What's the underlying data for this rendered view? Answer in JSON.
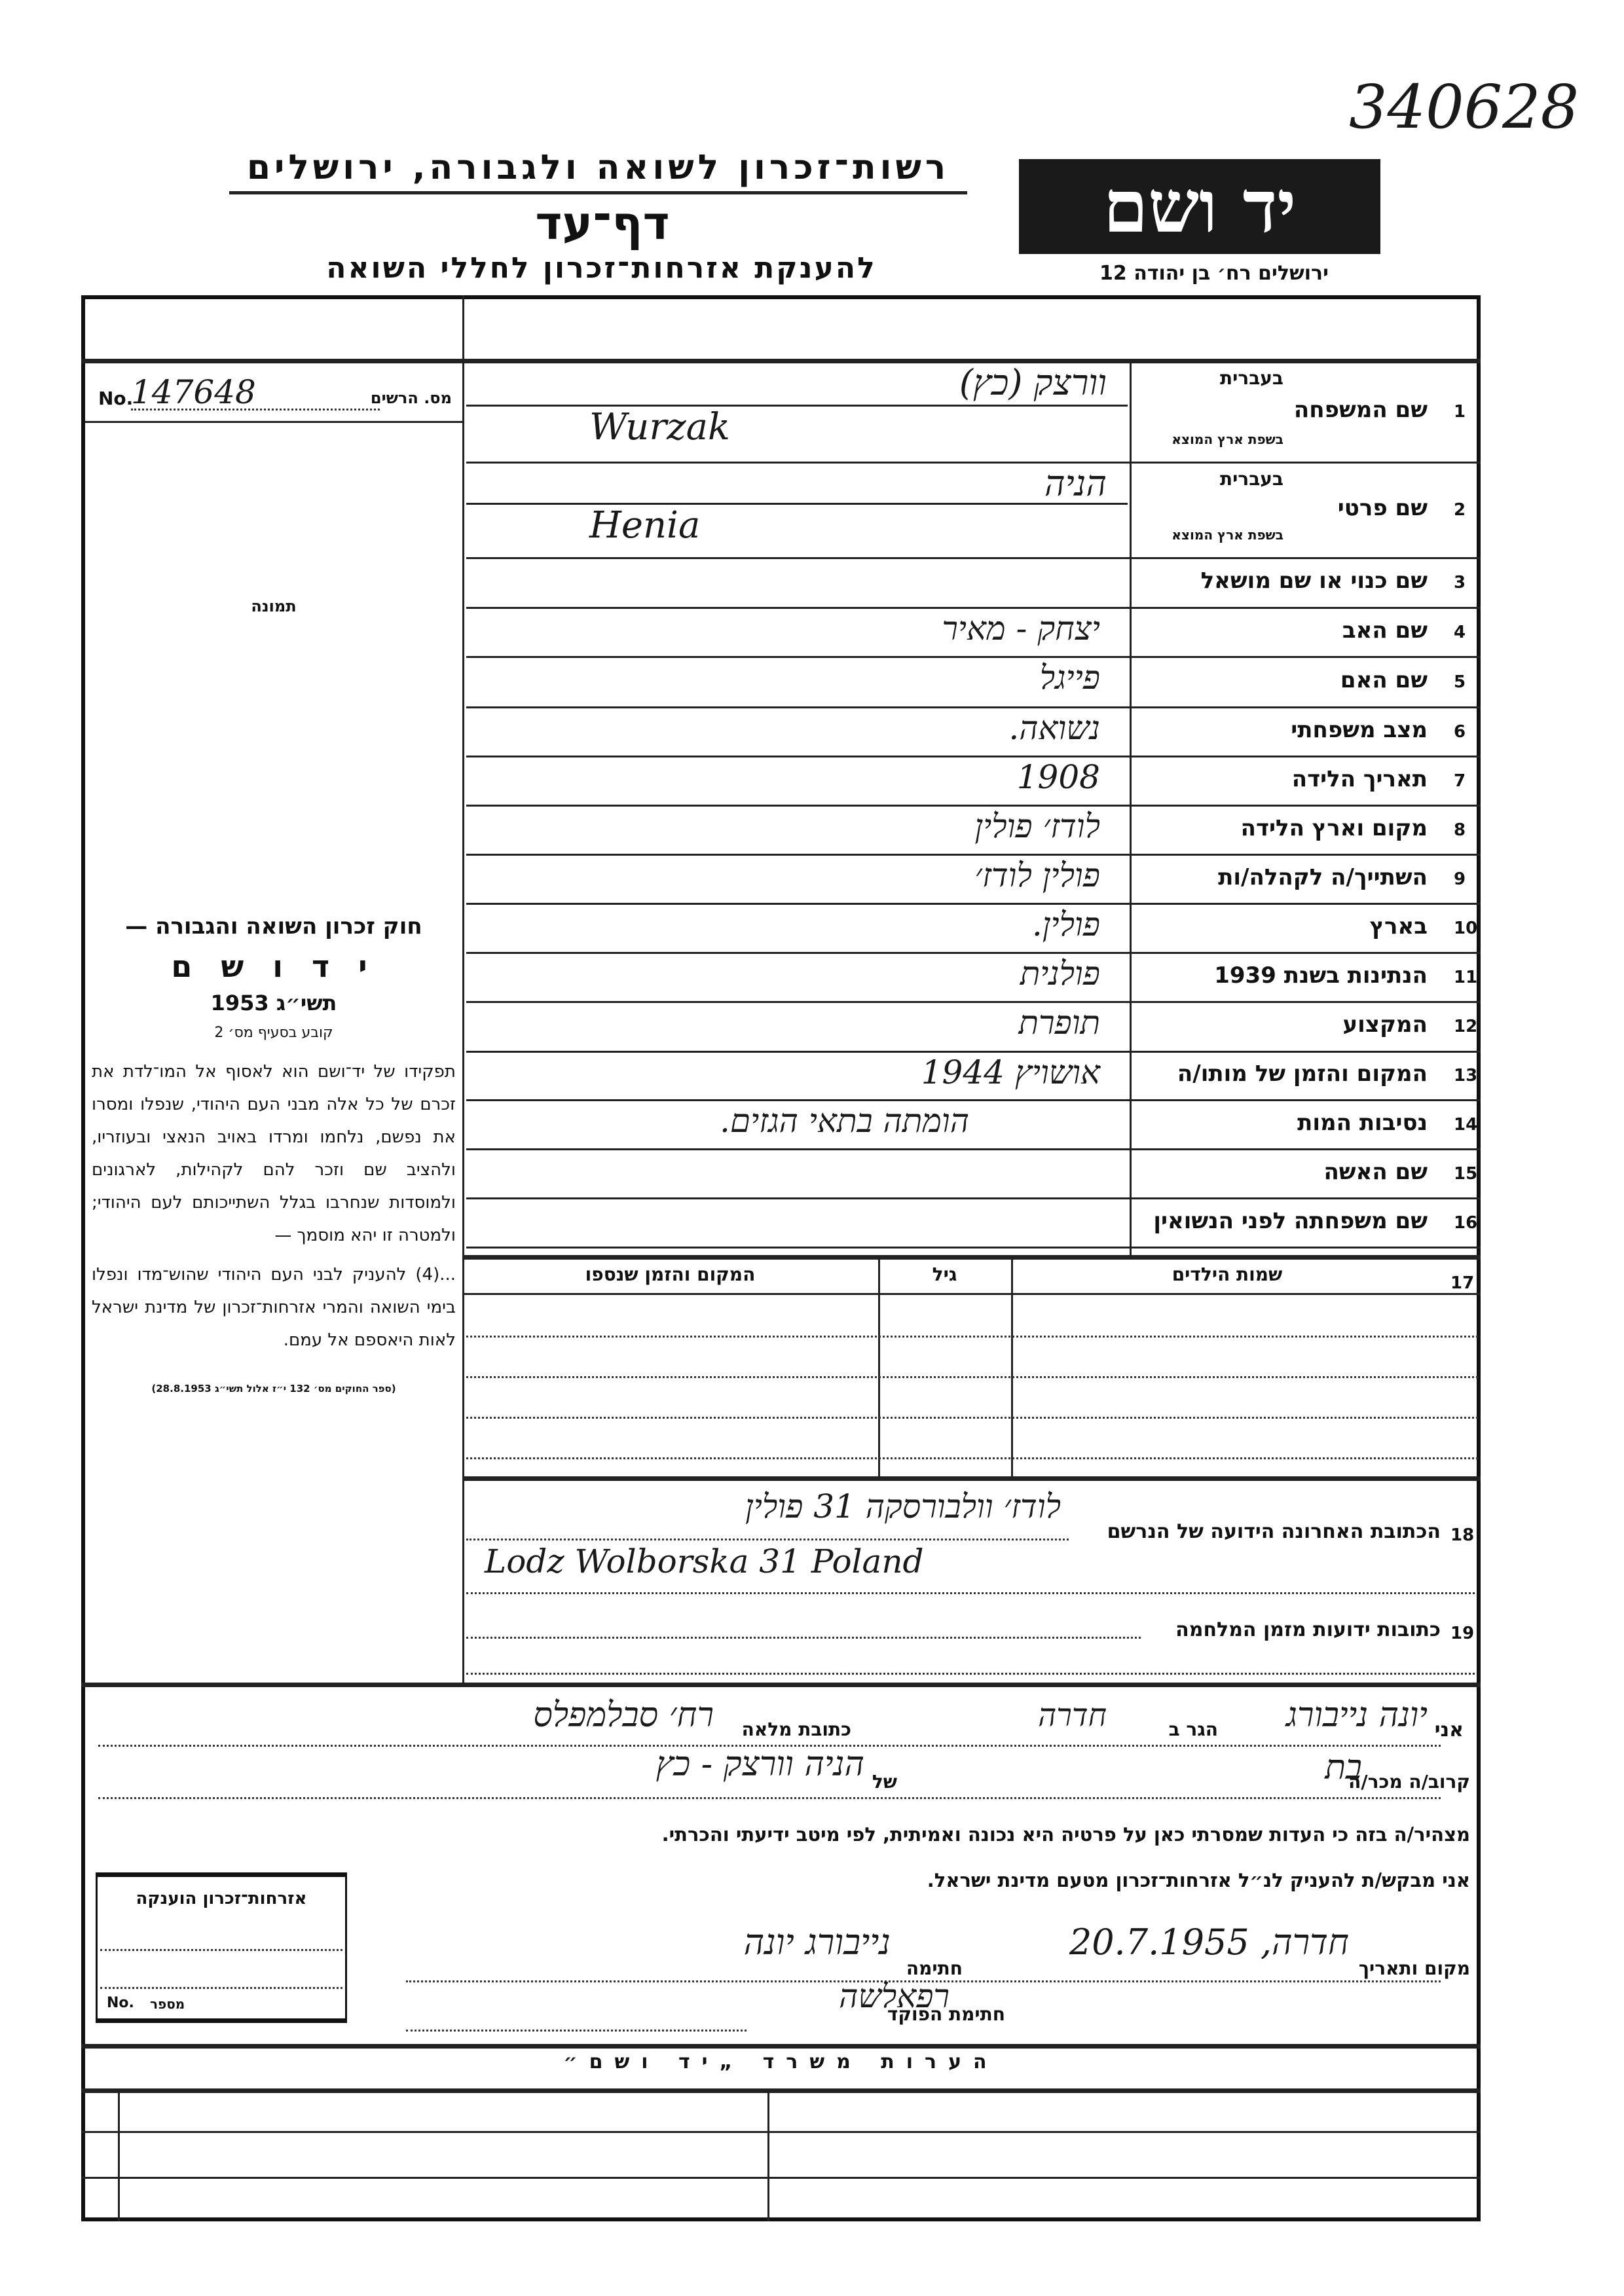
{
  "archive_number": "340628",
  "header": {
    "authority": "רשות־זכרון לשואה ולגבורה, ירושלים",
    "form_title": "דף־עד",
    "subtitle": "להענקת אזרחות־זכרון לחללי השואה",
    "logo_text": "יד ושם",
    "address": "ירושלים רח׳ בן יהודה 12"
  },
  "registration": {
    "prefix": "No.",
    "label": "מס. הרשים",
    "value": "147648"
  },
  "photo_label": "תמונה",
  "law": {
    "title": "חוק זכרון השואה והגבורה —",
    "name": "י ד ו ש ם",
    "year": "תשי״ג 1953",
    "clause": "קובע בסעיף מס׳ 2",
    "paragraph1": "תפקידו של יד־ושם הוא לאסוף אל המו־לדת את זכרם של כל אלה מבני העם היהודי, שנפלו ומסרו את נפשם, נלחמו ומרדו באויב הנאצי ובעוזריו, ולהציב שם וזכר להם לקהילות, לארגונים ולמוסדות שנחרבו בגלל השתייכותם לעם היהודי; ולמטרה זו יהא מוסמך —",
    "paragraph2": "...(4) להעניק לבני העם היהודי שהוש־מדו ונפלו בימי השואה והמרי אזרחות־זכרון של מדינת ישראל לאות היאספם אל עמם.",
    "citation": "(ספר החוקים מס׳ 132 י״ז אלול תשי״ג 28.8.1953)"
  },
  "fields": [
    {
      "num": "1",
      "label": "שם המשפחה",
      "sub_hebrew": "בעברית",
      "sub_origin": "בשפת ארץ המוצא",
      "value_hebrew": "וורצק (כץ)",
      "value_origin": "Wurzak"
    },
    {
      "num": "2",
      "label": "שם פרטי",
      "sub_hebrew": "בעברית",
      "sub_origin": "בשפת ארץ המוצא",
      "value_hebrew": "הניה",
      "value_origin": "Henia"
    },
    {
      "num": "3",
      "label": "שם כנוי או שם מושאל",
      "value": ""
    },
    {
      "num": "4",
      "label": "שם האב",
      "value": "יצחק - מאיר"
    },
    {
      "num": "5",
      "label": "שם האם",
      "value": "פייגל"
    },
    {
      "num": "6",
      "label": "מצב משפחתי",
      "value": "נשואה."
    },
    {
      "num": "7",
      "label": "תאריך הלידה",
      "value": "1908"
    },
    {
      "num": "8",
      "label": "מקום וארץ הלידה",
      "value": "לודז׳ פולין"
    },
    {
      "num": "9",
      "label": "השתייך/ה לקהלה/ות",
      "value": "פולין לודז׳"
    },
    {
      "num": "10",
      "label": "בארץ",
      "value": "פולין."
    },
    {
      "num": "11",
      "label": "הנתינות בשנת 1939",
      "value": "פולנית"
    },
    {
      "num": "12",
      "label": "המקצוע",
      "value": "תופרת"
    },
    {
      "num": "13",
      "label": "המקום והזמן של מותו/ה",
      "value": "אושויץ 1944"
    },
    {
      "num": "14",
      "label": "נסיבות המות",
      "value": "הומתה בתאי הגזים."
    },
    {
      "num": "15",
      "label": "שם האשה",
      "value": ""
    },
    {
      "num": "16",
      "label": "שם משפחתה לפני הנשואין",
      "value": ""
    }
  ],
  "children": {
    "num": "17",
    "headers": [
      "שמות הילדים",
      "גיל",
      "המקום והזמן שנספו"
    ],
    "rows": [
      [
        "",
        "",
        ""
      ],
      [
        "",
        "",
        ""
      ],
      [
        "",
        "",
        ""
      ],
      [
        "",
        "",
        ""
      ]
    ]
  },
  "last_address": {
    "num": "18",
    "label": "הכתובת האחרונה הידועה של הנרשם",
    "value_hebrew": "לודז׳ וולבורסקה 31 פולין",
    "value_origin": "Lodz Wolborska 31 Poland"
  },
  "war_addresses": {
    "num": "19",
    "label": "כתובות ידועות מזמן המלחמה",
    "value": ""
  },
  "declaration": {
    "i_label": "אני",
    "name": "יונה נייבורג",
    "resides_label": "הגר ב",
    "city": "חדרה",
    "address_label": "כתובת מלאה",
    "address": "רח׳ סבלמפלס",
    "relative_label": "קרוב/ה מכר/ה",
    "relation": "בת",
    "of_label": "של",
    "relative_of": "הניה וורצק - כץ",
    "statement": "מצהיר/ה בזה כי העדות שמסרתי כאן על פרטיה היא נכונה ואמיתית, לפי מיטב ידיעתי והכרתי.",
    "request": "אני מבקש/ת להעניק לנ״ל אזרחות־זכרון מטעם מדינת ישראל.",
    "place_date_label": "מקום ותאריך",
    "place_date": "חדרה, 20.7.1955",
    "signature_label": "חתימה",
    "signature": "נייבורג יונה",
    "officer_label": "חתימת הפוקד",
    "officer_signature": "רפאלשה"
  },
  "grant_box": {
    "title": "אזרחות־זכרון הוענקה",
    "number_label": "מספר",
    "number_prefix": "No."
  },
  "remarks": {
    "title": "הערות משרד „יד ושם״"
  }
}
